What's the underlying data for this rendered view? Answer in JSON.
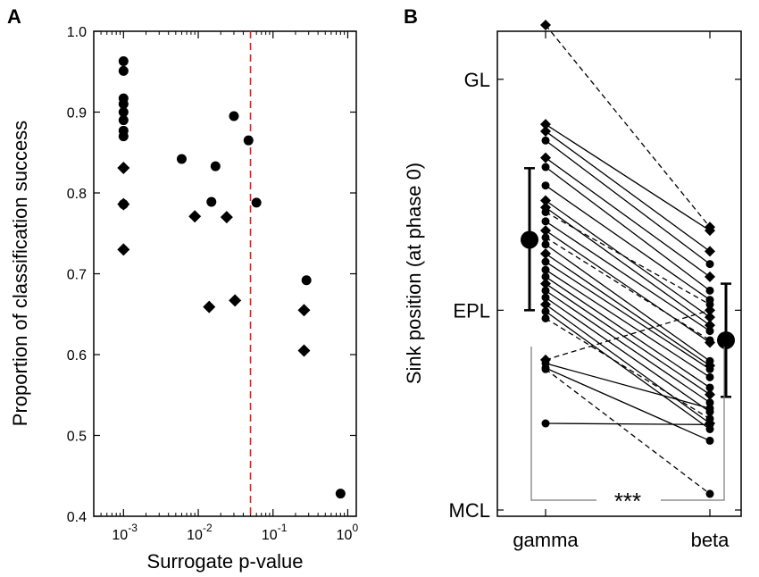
{
  "chart_data": [
    {
      "panel_label": "A",
      "type": "scatter",
      "xlabel": "Surrogate p-value",
      "ylabel": "Proportion of classification success",
      "xscale": "log",
      "xlim": [
        0.0004,
        1.3
      ],
      "ylim": [
        0.4,
        1.0
      ],
      "x_ticks": [
        {
          "value": 0.001,
          "base": "10",
          "exp": "-3"
        },
        {
          "value": 0.01,
          "base": "10",
          "exp": "-2"
        },
        {
          "value": 0.1,
          "base": "10",
          "exp": "-1"
        },
        {
          "value": 1,
          "base": "10",
          "exp": "0"
        }
      ],
      "y_ticks": [
        "0.4",
        "0.5",
        "0.6",
        "0.7",
        "0.8",
        "0.9",
        "1.0"
      ],
      "threshold_line": {
        "x": 0.05,
        "color": "#e0221f",
        "style": "dashed"
      },
      "series": [
        {
          "name": "circles",
          "marker": "circle",
          "points": [
            {
              "x": 0.001,
              "y": 0.963
            },
            {
              "x": 0.001,
              "y": 0.951
            },
            {
              "x": 0.001,
              "y": 0.917
            },
            {
              "x": 0.001,
              "y": 0.91
            },
            {
              "x": 0.001,
              "y": 0.9
            },
            {
              "x": 0.001,
              "y": 0.89
            },
            {
              "x": 0.001,
              "y": 0.877
            },
            {
              "x": 0.001,
              "y": 0.87
            },
            {
              "x": 0.001,
              "y": 0.786
            },
            {
              "x": 0.006,
              "y": 0.842
            },
            {
              "x": 0.017,
              "y": 0.833
            },
            {
              "x": 0.015,
              "y": 0.789
            },
            {
              "x": 0.03,
              "y": 0.895
            },
            {
              "x": 0.047,
              "y": 0.865
            },
            {
              "x": 0.06,
              "y": 0.788
            },
            {
              "x": 0.28,
              "y": 0.692
            },
            {
              "x": 0.8,
              "y": 0.428
            }
          ]
        },
        {
          "name": "diamonds",
          "marker": "diamond",
          "points": [
            {
              "x": 0.001,
              "y": 0.831
            },
            {
              "x": 0.001,
              "y": 0.786
            },
            {
              "x": 0.001,
              "y": 0.73
            },
            {
              "x": 0.009,
              "y": 0.771
            },
            {
              "x": 0.024,
              "y": 0.77
            },
            {
              "x": 0.014,
              "y": 0.659
            },
            {
              "x": 0.031,
              "y": 0.667
            },
            {
              "x": 0.26,
              "y": 0.655
            },
            {
              "x": 0.26,
              "y": 0.605
            }
          ]
        }
      ]
    },
    {
      "panel_label": "B",
      "type": "paired-scatter",
      "ylabel": "Sink position (at phase 0)",
      "categories": [
        "gamma",
        "beta"
      ],
      "ylim": [
        0,
        4.2
      ],
      "y_ticks": [
        {
          "label": "MCL",
          "value": 0
        },
        {
          "label": "EPL",
          "value": 1.73
        },
        {
          "label": "GL",
          "value": 3.73
        }
      ],
      "significance": "***",
      "summary": {
        "gamma": {
          "mean": 2.34,
          "lower": 1.73,
          "upper": 2.96
        },
        "beta": {
          "mean": 1.47,
          "lower": 0.98,
          "upper": 1.96
        }
      },
      "pairs": [
        {
          "gamma": 4.2,
          "beta": 2.45,
          "marker": "diamond",
          "line": "dashed"
        },
        {
          "gamma": 3.34,
          "beta": 2.42,
          "marker": "diamond",
          "line": "solid"
        },
        {
          "gamma": 3.28,
          "beta": 2.24,
          "marker": "diamond",
          "line": "solid"
        },
        {
          "gamma": 3.2,
          "beta": 2.13,
          "marker": "circle",
          "line": "solid"
        },
        {
          "gamma": 3.05,
          "beta": 2.02,
          "marker": "diamond",
          "line": "solid"
        },
        {
          "gamma": 2.97,
          "beta": 1.9,
          "marker": "circle",
          "line": "solid"
        },
        {
          "gamma": 2.81,
          "beta": 1.82,
          "marker": "circle",
          "line": "solid"
        },
        {
          "gamma": 2.68,
          "beta": 1.67,
          "marker": "diamond",
          "line": "solid"
        },
        {
          "gamma": 2.62,
          "beta": 1.6,
          "marker": "diamond",
          "line": "solid"
        },
        {
          "gamma": 2.58,
          "beta": 1.78,
          "marker": "circle",
          "line": "dashed"
        },
        {
          "gamma": 2.5,
          "beta": 1.55,
          "marker": "circle",
          "line": "solid"
        },
        {
          "gamma": 2.42,
          "beta": 1.45,
          "marker": "diamond",
          "line": "solid"
        },
        {
          "gamma": 2.36,
          "beta": 1.47,
          "marker": "circle",
          "line": "dashed"
        },
        {
          "gamma": 2.3,
          "beta": 1.29,
          "marker": "circle",
          "line": "solid"
        },
        {
          "gamma": 2.22,
          "beta": 1.25,
          "marker": "diamond",
          "line": "solid"
        },
        {
          "gamma": 2.15,
          "beta": 1.22,
          "marker": "circle",
          "line": "solid"
        },
        {
          "gamma": 2.08,
          "beta": 1.15,
          "marker": "circle",
          "line": "solid"
        },
        {
          "gamma": 2.02,
          "beta": 1.06,
          "marker": "circle",
          "line": "solid"
        },
        {
          "gamma": 1.96,
          "beta": 1.0,
          "marker": "diamond",
          "line": "solid"
        },
        {
          "gamma": 1.9,
          "beta": 0.93,
          "marker": "circle",
          "line": "solid"
        },
        {
          "gamma": 1.84,
          "beta": 0.85,
          "marker": "circle",
          "line": "solid"
        },
        {
          "gamma": 1.78,
          "beta": 0.75,
          "marker": "diamond",
          "line": "solid"
        },
        {
          "gamma": 1.72,
          "beta": 0.7,
          "marker": "circle",
          "line": "solid"
        },
        {
          "gamma": 1.66,
          "beta": 0.79,
          "marker": "circle",
          "line": "dashed"
        },
        {
          "gamma": 1.3,
          "beta": 1.73,
          "marker": "diamond",
          "line": "dashed"
        },
        {
          "gamma": 1.27,
          "beta": 0.88,
          "marker": "circle",
          "line": "solid"
        },
        {
          "gamma": 1.23,
          "beta": 0.6,
          "marker": "circle",
          "line": "solid"
        },
        {
          "gamma": 1.22,
          "beta": 0.14,
          "marker": "circle",
          "line": "dashed"
        },
        {
          "gamma": 0.75,
          "beta": 0.74,
          "marker": "circle",
          "line": "solid"
        }
      ]
    }
  ]
}
